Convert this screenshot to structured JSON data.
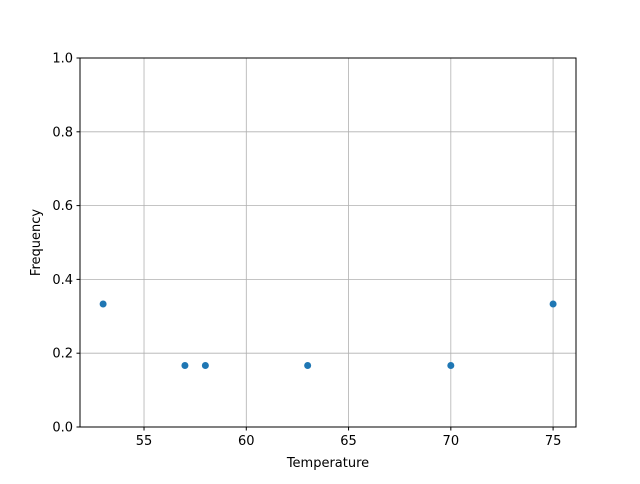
{
  "chart_data": {
    "type": "scatter",
    "title": "",
    "xlabel": "Temperature",
    "ylabel": "Frequency",
    "xlim": [
      51.87,
      76.12
    ],
    "ylim": [
      0,
      1.0
    ],
    "xticks": [
      55,
      60,
      65,
      70,
      75
    ],
    "xtick_labels": [
      "55",
      "60",
      "65",
      "70",
      "75"
    ],
    "yticks": [
      0,
      0.2,
      0.4,
      0.6,
      0.8,
      1.0
    ],
    "ytick_labels": [
      "0.0",
      "0.2",
      "0.4",
      "0.6",
      "0.8",
      "1.0"
    ],
    "grid": true,
    "marker_color": "#1f77b4",
    "grid_color": "#b0b0b0",
    "x": [
      53,
      57,
      58,
      63,
      70,
      75
    ],
    "y": [
      0.3333,
      0.1667,
      0.1667,
      0.1667,
      0.1667,
      0.3333
    ]
  }
}
